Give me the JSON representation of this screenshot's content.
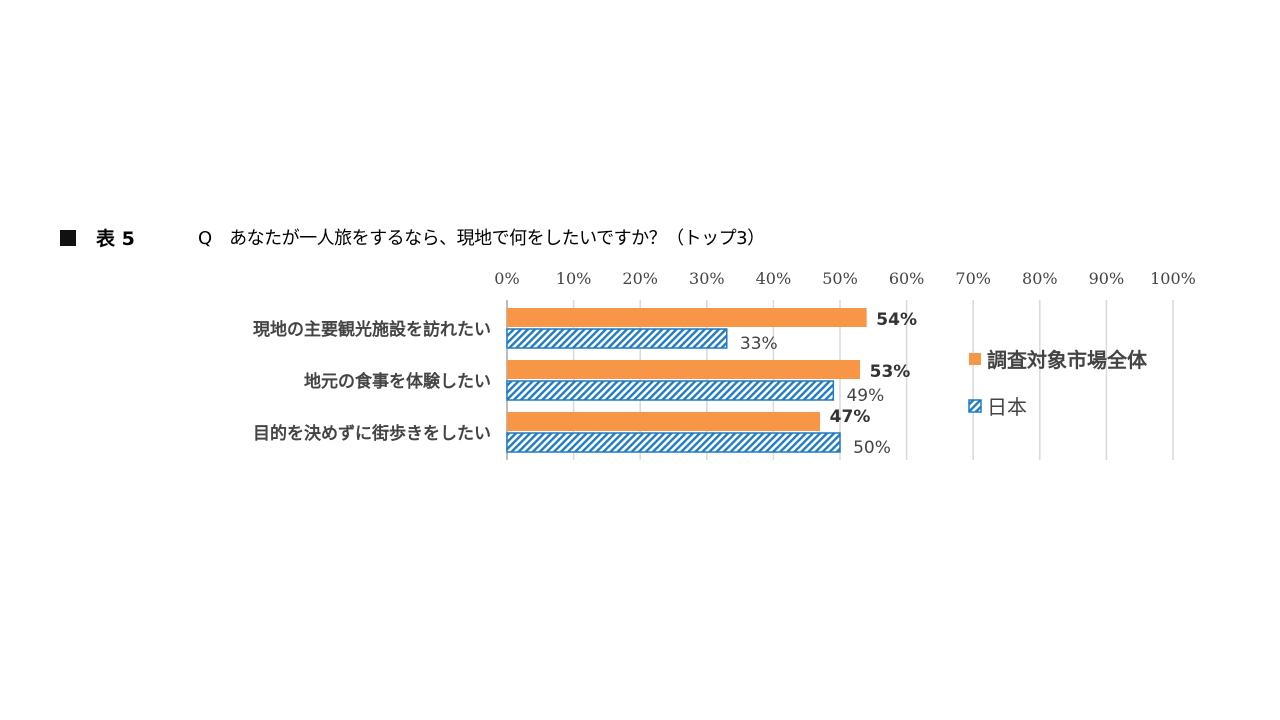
{
  "header": {
    "table_label": "表 5",
    "question": "Q　あなたが一人旅をするなら、現地で何をしたいですか？（トップ3）"
  },
  "chart_data": {
    "type": "bar",
    "orientation": "horizontal",
    "categories": [
      "現地の主要観光施設を訪れたい",
      "地元の食事を体験したい",
      "目的を決めずに街歩きをしたい"
    ],
    "series": [
      {
        "name": "調査対象市場全体",
        "values": [
          54,
          53,
          47
        ],
        "labels": [
          "54%",
          "53%",
          "47%"
        ],
        "color": "#f79646",
        "pattern": "solid"
      },
      {
        "name": "日本",
        "values": [
          33,
          49,
          50
        ],
        "labels": [
          "33%",
          "49%",
          "50%"
        ],
        "color": "#1f7bc4",
        "pattern": "diagonal-hatch"
      }
    ],
    "xlim": [
      0,
      100
    ],
    "x_ticks": [
      "0%",
      "10%",
      "20%",
      "30%",
      "40%",
      "50%",
      "60%",
      "70%",
      "80%",
      "90%",
      "100%"
    ],
    "x_tick_position": "top",
    "grid": true,
    "legend_position": "right"
  }
}
